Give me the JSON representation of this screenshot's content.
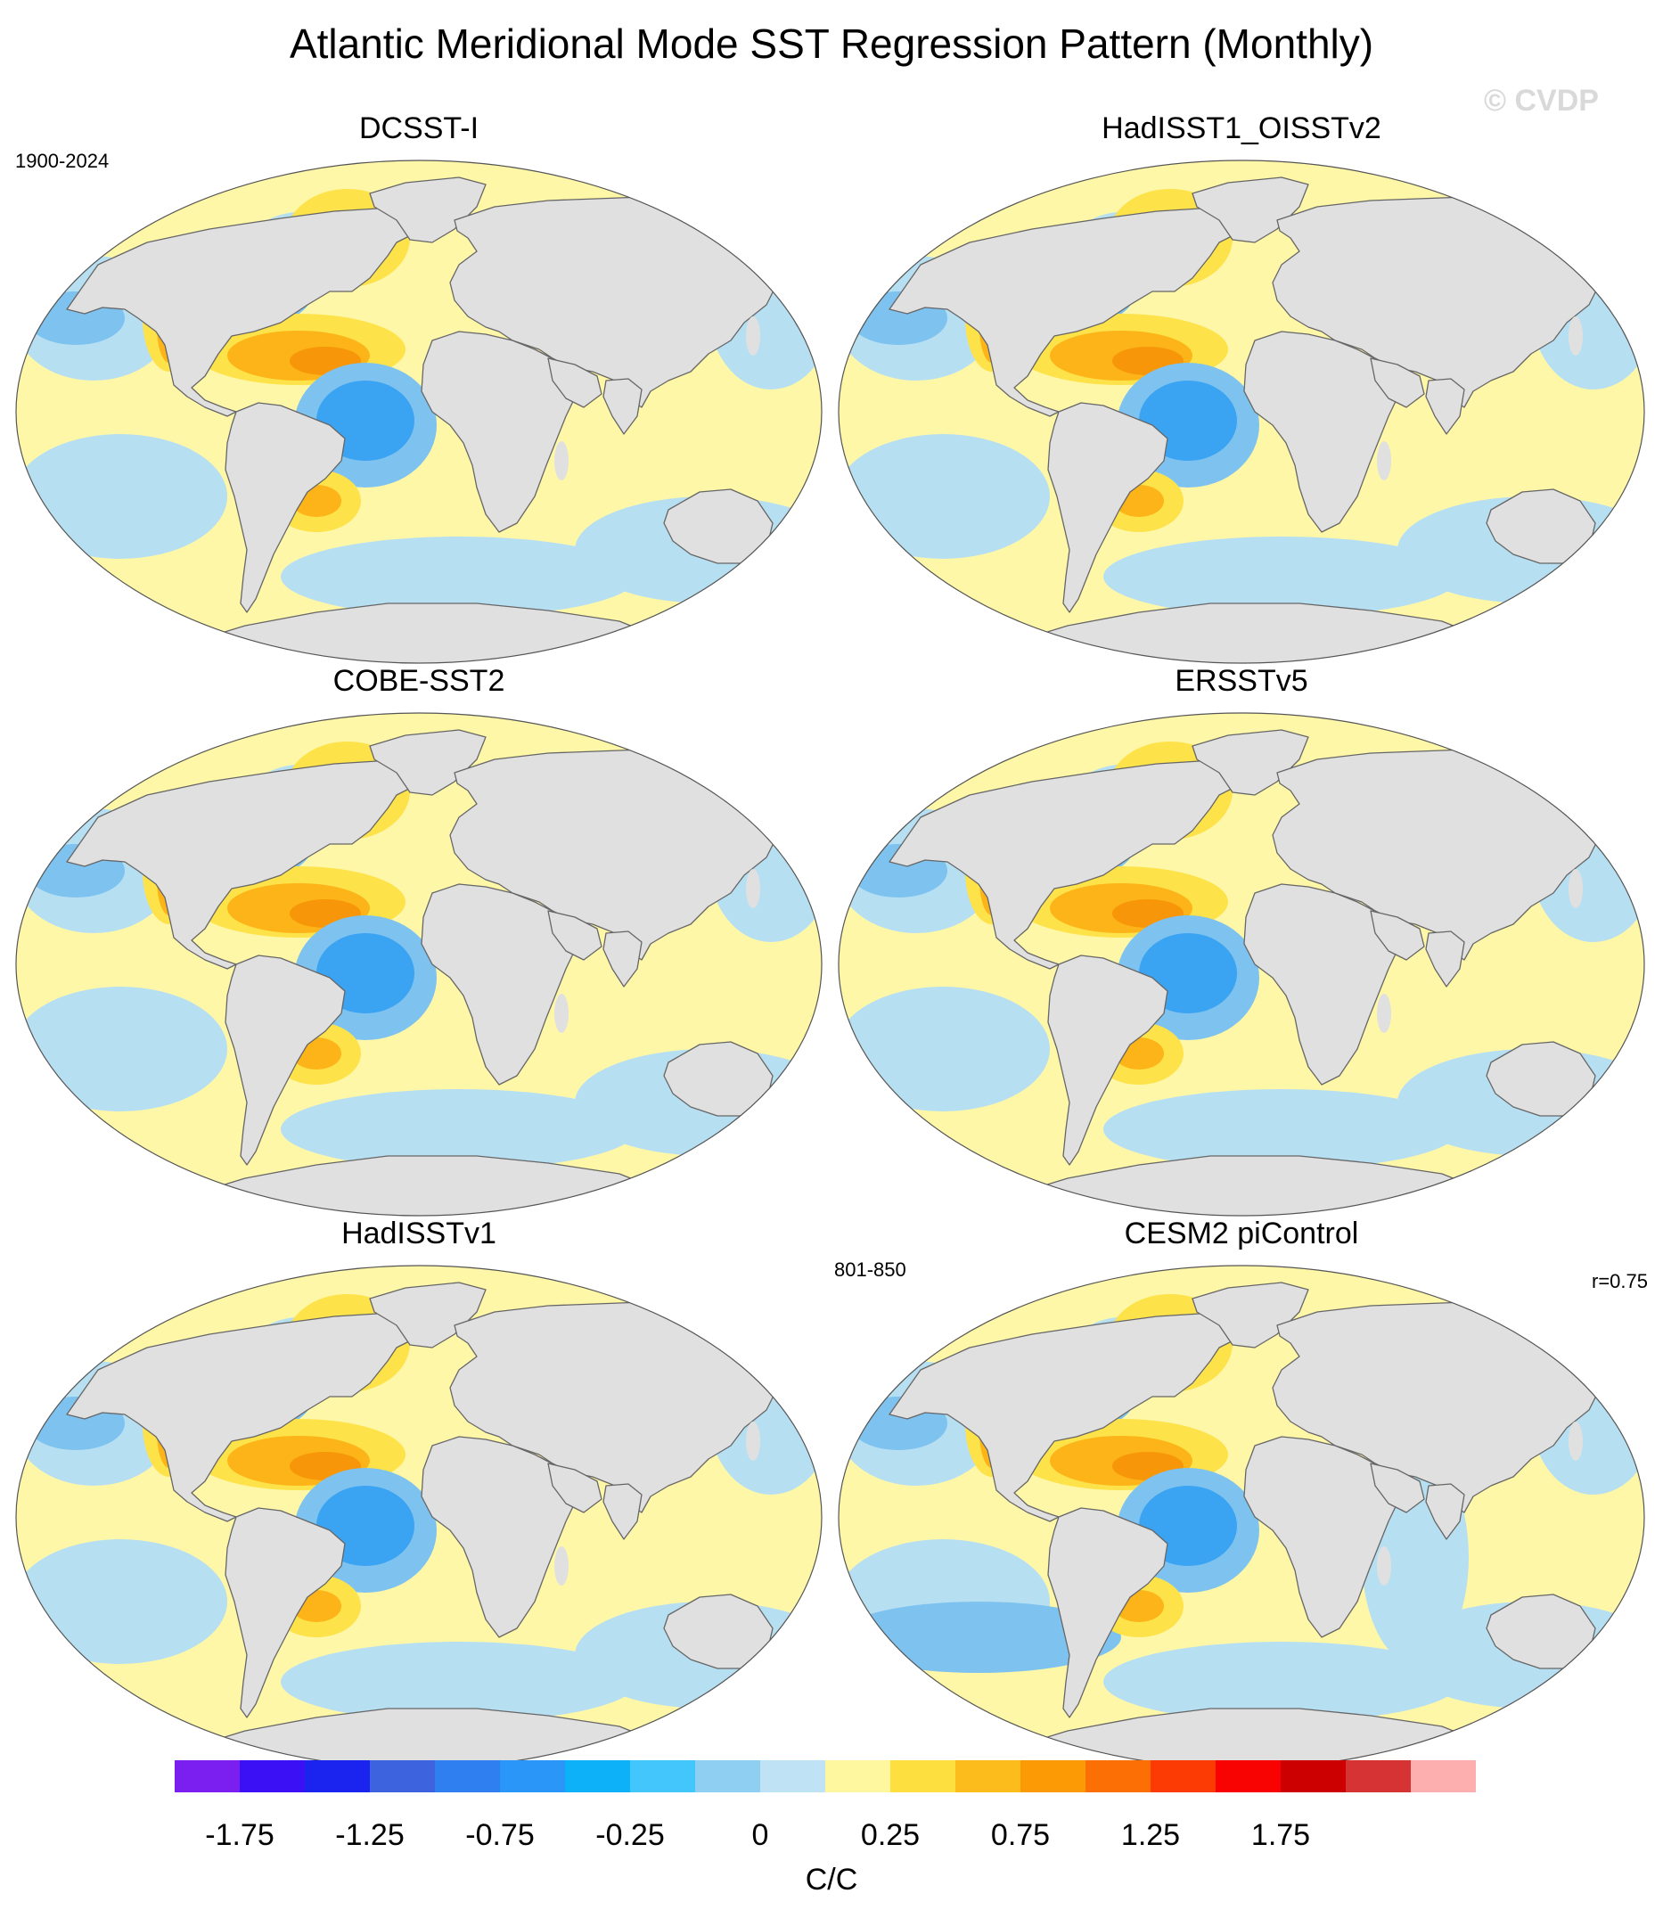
{
  "title": "Atlantic Meridional Mode SST Regression Pattern (Monthly)",
  "watermark": "© CVDP",
  "colors": {
    "land": "#e0e0e0",
    "coast": "#666666",
    "ocean_base": "#fff7a8",
    "light_blue": "#b7dff2",
    "mid_blue": "#7ec2ef",
    "blue": "#3aa3f2",
    "deep_blue": "#1e7ee6",
    "yellow": "#fde24a",
    "orange": "#fcb418",
    "dark_orange": "#f79608"
  },
  "panels": [
    {
      "title": "DCSST-I",
      "note_left": "1900-2024",
      "note_right": ""
    },
    {
      "title": "HadISST1_OISSTv2",
      "note_left": "",
      "note_right": ""
    },
    {
      "title": "COBE-SST2",
      "note_left": "",
      "note_right": ""
    },
    {
      "title": "ERSSTv5",
      "note_left": "",
      "note_right": ""
    },
    {
      "title": "HadISSTv1",
      "note_left": "",
      "note_right": ""
    },
    {
      "title": "CESM2 piControl",
      "note_left": "801-850",
      "note_right": "r=0.75"
    }
  ],
  "colorbar": {
    "colors": [
      "#7b1ef0",
      "#3c10f5",
      "#1b24ee",
      "#3d63de",
      "#2f7ff0",
      "#2a96f7",
      "#0cb1f7",
      "#43c6fb",
      "#8fd0f2",
      "#bfe3f5",
      "#fff7a0",
      "#fde040",
      "#fcbd1c",
      "#fc9a05",
      "#fb6f04",
      "#fc3a03",
      "#f90202",
      "#cc0000",
      "#d63434",
      "#fdaeae"
    ],
    "labels": [
      "-1.75",
      "-1.25",
      "-0.75",
      "-0.25",
      "0",
      "0.25",
      "0.75",
      "1.25",
      "1.75"
    ],
    "units": "C/C"
  }
}
